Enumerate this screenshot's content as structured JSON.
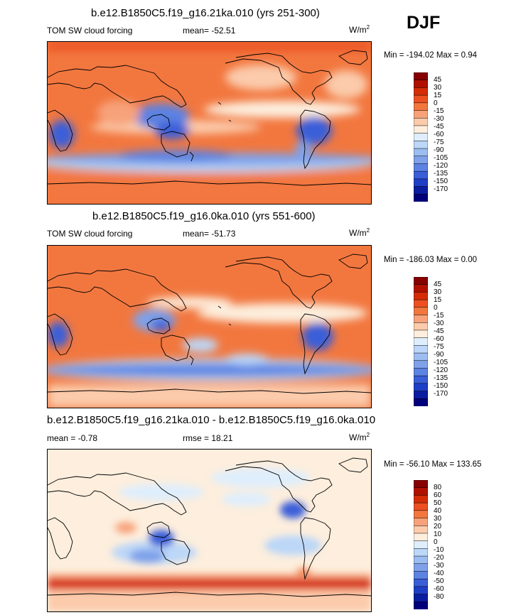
{
  "season": "DJF",
  "panels": [
    {
      "title": "b.e12.B1850C5.f19_g16.21ka.010 (yrs 251-300)",
      "left_label": "TOM SW cloud forcing",
      "mid_label": "mean= -52.51",
      "units": "W/m",
      "units_exp": "2",
      "minmax": "Min = -194.02 Max =   0.94"
    },
    {
      "title": "b.e12.B1850C5.f19_g16.0ka.010 (yrs 551-600)",
      "left_label": "TOM SW cloud forcing",
      "mid_label": "mean= -51.73",
      "units": "W/m",
      "units_exp": "2",
      "minmax": "Min = -186.03 Max =   0.00"
    },
    {
      "title": "b.e12.B1850C5.f19_g16.21ka.010 - b.e12.B1850C5.f19_g16.0ka.010",
      "left_label": "mean =  -0.78",
      "mid_label": "rmse =  18.21",
      "units": "W/m",
      "units_exp": "2",
      "minmax": "Min = -56.10 Max = 133.65"
    }
  ],
  "chart_data": [
    {
      "type": "heatmap",
      "title": "b.e12.B1850C5.f19_g16.21ka.010 (yrs 251-300)",
      "variable": "TOM SW cloud forcing",
      "mean": -52.51,
      "min": -194.02,
      "max": 0.94,
      "units": "W/m2",
      "colorbar_levels": [
        "45",
        "30",
        "15",
        "0",
        "-15",
        "-30",
        "-45",
        "-60",
        "-75",
        "-90",
        "-105",
        "-120",
        "-135",
        "-150",
        "-170"
      ],
      "colors": [
        "#870000",
        "#b01000",
        "#d42c08",
        "#ec5022",
        "#f2773f",
        "#f7a27a",
        "#fbcbab",
        "#fdeedd",
        "#dfeefc",
        "#bcd7f8",
        "#9cbdf1",
        "#7ea1ea",
        "#5c82e2",
        "#3a5ed8",
        "#1f3ec6",
        "#0a1ca0",
        "#00007a"
      ]
    },
    {
      "type": "heatmap",
      "title": "b.e12.B1850C5.f19_g16.0ka.010 (yrs 551-600)",
      "variable": "TOM SW cloud forcing",
      "mean": -51.73,
      "min": -186.03,
      "max": 0.0,
      "units": "W/m2",
      "colorbar_levels": [
        "45",
        "30",
        "15",
        "0",
        "-15",
        "-30",
        "-45",
        "-60",
        "-75",
        "-90",
        "-105",
        "-120",
        "-135",
        "-150",
        "-170"
      ],
      "colors": [
        "#870000",
        "#b01000",
        "#d42c08",
        "#ec5022",
        "#f2773f",
        "#f7a27a",
        "#fbcbab",
        "#fdeedd",
        "#dfeefc",
        "#bcd7f8",
        "#9cbdf1",
        "#7ea1ea",
        "#5c82e2",
        "#3a5ed8",
        "#1f3ec6",
        "#0a1ca0",
        "#00007a"
      ]
    },
    {
      "type": "heatmap",
      "title": "b.e12.B1850C5.f19_g16.21ka.010 - b.e12.B1850C5.f19_g16.0ka.010",
      "mean": -0.78,
      "rmse": 18.21,
      "min": -56.1,
      "max": 133.65,
      "units": "W/m2",
      "colorbar_levels": [
        "80",
        "60",
        "50",
        "40",
        "30",
        "20",
        "10",
        "0",
        "-10",
        "-20",
        "-30",
        "-40",
        "-50",
        "-60",
        "-80"
      ],
      "colors": [
        "#870000",
        "#b01000",
        "#d42c08",
        "#ec5022",
        "#f2773f",
        "#f7a27a",
        "#fbcbab",
        "#fdeedd",
        "#dfeefc",
        "#bcd7f8",
        "#9cbdf1",
        "#7ea1ea",
        "#5c82e2",
        "#3a5ed8",
        "#1f3ec6",
        "#0a1ca0",
        "#00007a"
      ]
    }
  ]
}
